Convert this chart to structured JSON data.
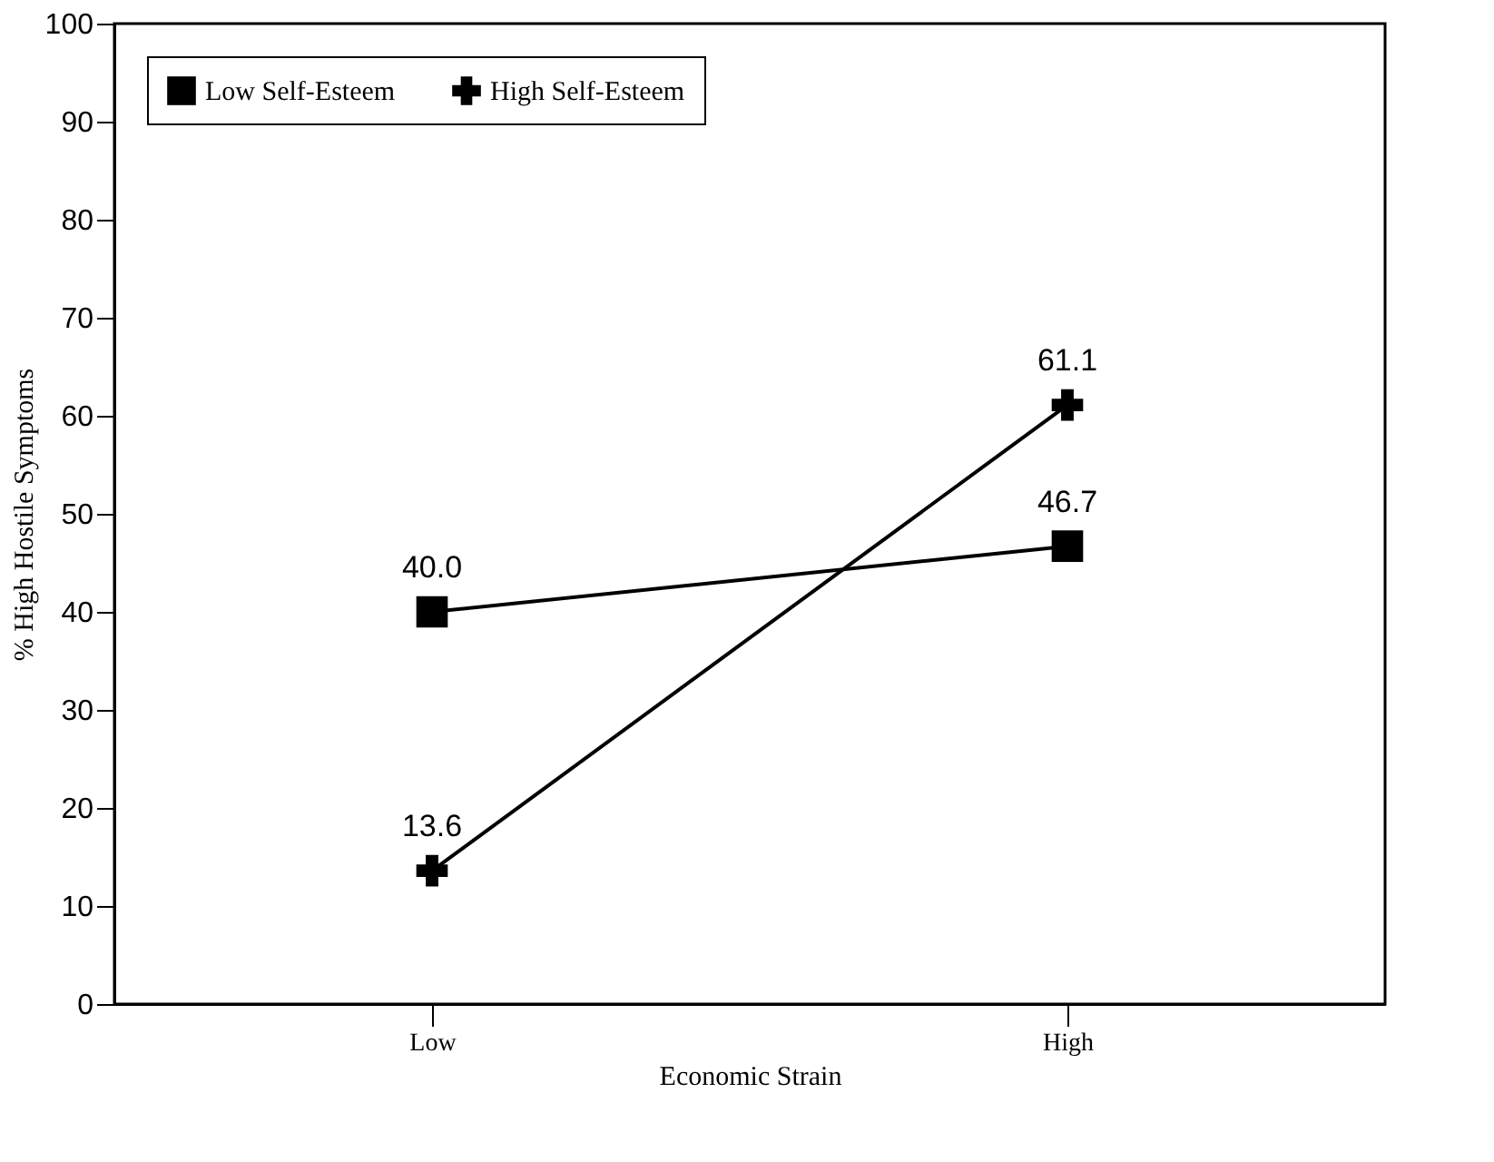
{
  "chart_data": {
    "type": "line",
    "xlabel": "Economic Strain",
    "ylabel": "% High Hostile Symptoms",
    "categories": [
      "Low",
      "High"
    ],
    "series": [
      {
        "name": "Low Self-Esteem",
        "color": "#000000",
        "marker": "square",
        "values": [
          40.0,
          46.7
        ],
        "value_labels": [
          "40.0",
          "46.7"
        ]
      },
      {
        "name": "High Self-Esteem",
        "color": "#000000",
        "marker": "cross",
        "values": [
          13.6,
          61.1
        ],
        "value_labels": [
          "13.6",
          "61.1"
        ]
      }
    ],
    "ylim": [
      0,
      100
    ],
    "yticks": [
      0,
      10,
      20,
      30,
      40,
      50,
      60,
      70,
      80,
      90,
      100
    ],
    "grid": false,
    "legend": "top left",
    "line_style": "solid"
  }
}
